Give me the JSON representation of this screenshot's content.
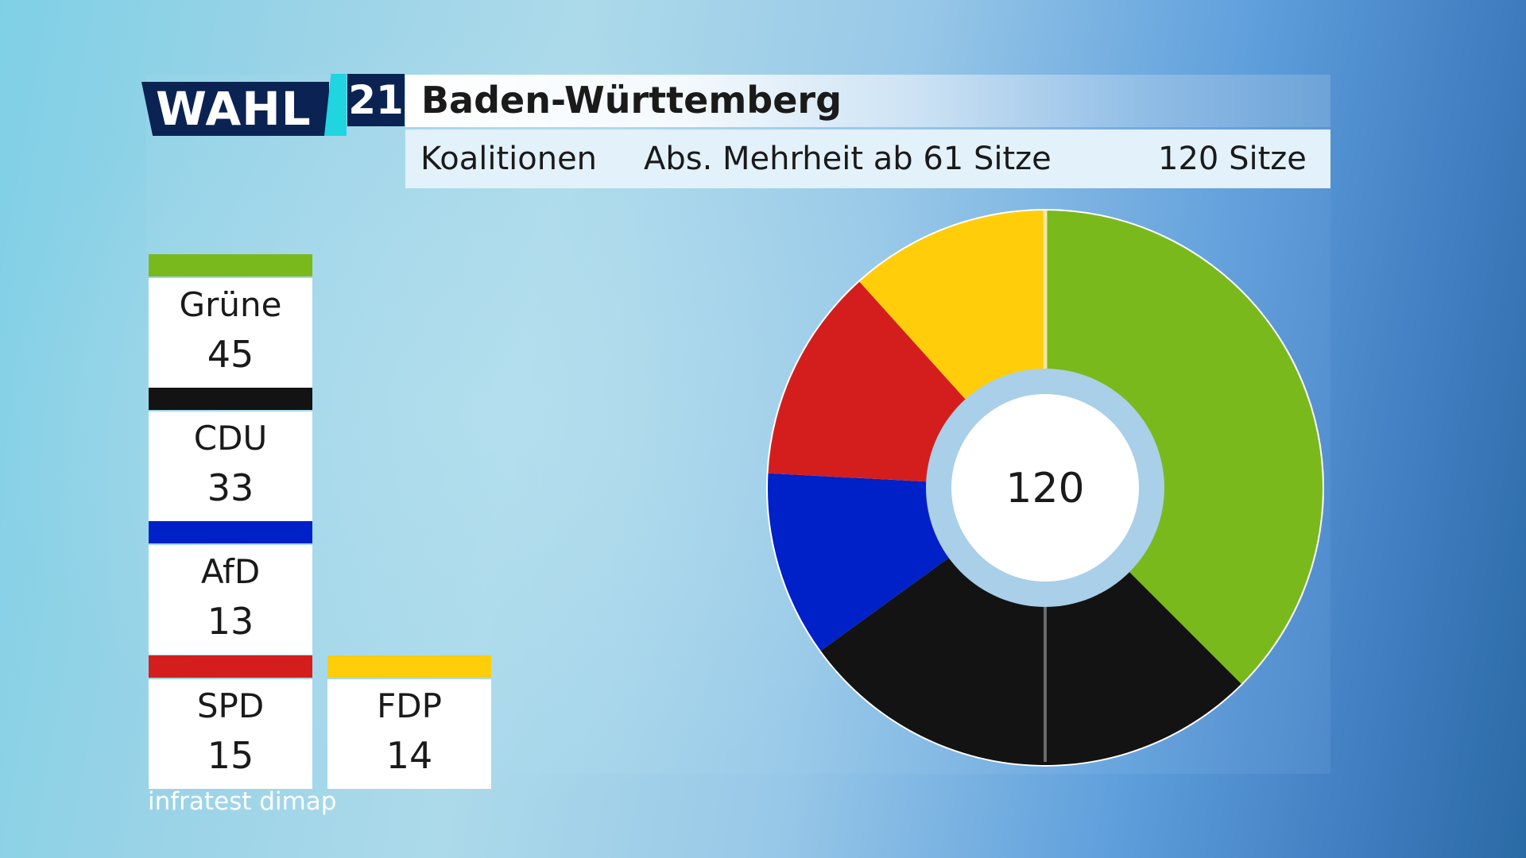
{
  "header": {
    "logo_text": "WAHL",
    "logo_year": "21",
    "title": "Baden-Württemberg",
    "subtitle_left": "Koalitionen",
    "subtitle_mid": "Abs. Mehrheit ab 61 Sitze",
    "subtitle_right": "120 Sitze"
  },
  "source": "infratest dimap",
  "chart_data": {
    "type": "pie",
    "title": "Baden-Württemberg",
    "total": 120,
    "center_label": "120",
    "series": [
      {
        "name": "Grüne",
        "value": 45,
        "color": "#7ab91c"
      },
      {
        "name": "CDU",
        "value": 33,
        "color": "#131313"
      },
      {
        "name": "AfD",
        "value": 13,
        "color": "#0020c8"
      },
      {
        "name": "SPD",
        "value": 15,
        "color": "#d41e1e"
      },
      {
        "name": "FDP",
        "value": 14,
        "color": "#ffcd0a"
      }
    ]
  },
  "legend": [
    {
      "name": "Grüne",
      "seats": "45",
      "color": "#7ab91c"
    },
    {
      "name": "CDU",
      "seats": "33",
      "color": "#131313"
    },
    {
      "name": "AfD",
      "seats": "13",
      "color": "#0020c8"
    },
    {
      "name": "SPD",
      "seats": "15",
      "color": "#d41e1e"
    },
    {
      "name": "FDP",
      "seats": "14",
      "color": "#ffcd0a"
    }
  ]
}
